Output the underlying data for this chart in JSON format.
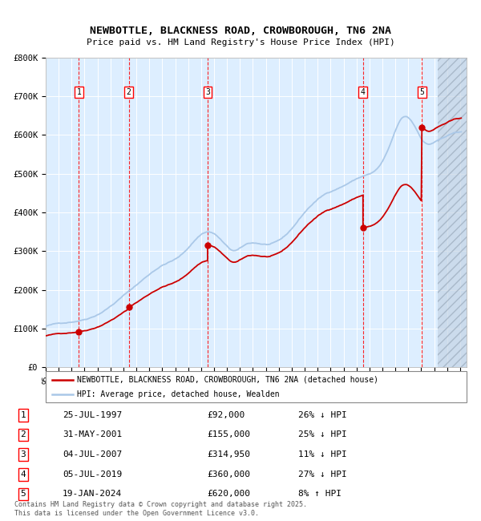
{
  "title_line1": "NEWBOTTLE, BLACKNESS ROAD, CROWBOROUGH, TN6 2NA",
  "title_line2": "Price paid vs. HM Land Registry's House Price Index (HPI)",
  "legend_label_red": "NEWBOTTLE, BLACKNESS ROAD, CROWBOROUGH, TN6 2NA (detached house)",
  "legend_label_blue": "HPI: Average price, detached house, Wealden",
  "footer": "Contains HM Land Registry data © Crown copyright and database right 2025.\nThis data is licensed under the Open Government Licence v3.0.",
  "purchases": [
    {
      "num": 1,
      "date": "25-JUL-1997",
      "price": 92000,
      "pct": "26%",
      "dir": "↓",
      "year": 1997.56
    },
    {
      "num": 2,
      "date": "31-MAY-2001",
      "price": 155000,
      "pct": "25%",
      "dir": "↓",
      "year": 2001.41
    },
    {
      "num": 3,
      "date": "04-JUL-2007",
      "price": 314950,
      "pct": "11%",
      "dir": "↓",
      "year": 2007.5
    },
    {
      "num": 4,
      "date": "05-JUL-2019",
      "price": 360000,
      "pct": "27%",
      "dir": "↓",
      "year": 2019.5
    },
    {
      "num": 5,
      "date": "19-JAN-2024",
      "price": 620000,
      "pct": "8%",
      "dir": "↑",
      "year": 2024.05
    }
  ],
  "hpi_color": "#aac8e8",
  "price_color": "#cc0000",
  "dot_color": "#cc0000",
  "bg_color": "#ddeeff",
  "xmin": 1995.0,
  "xmax": 2027.5,
  "ymin": 0,
  "ymax": 800000,
  "yticks": [
    0,
    100000,
    200000,
    300000,
    400000,
    500000,
    600000,
    700000,
    800000
  ],
  "hatch_start": 2025.3
}
